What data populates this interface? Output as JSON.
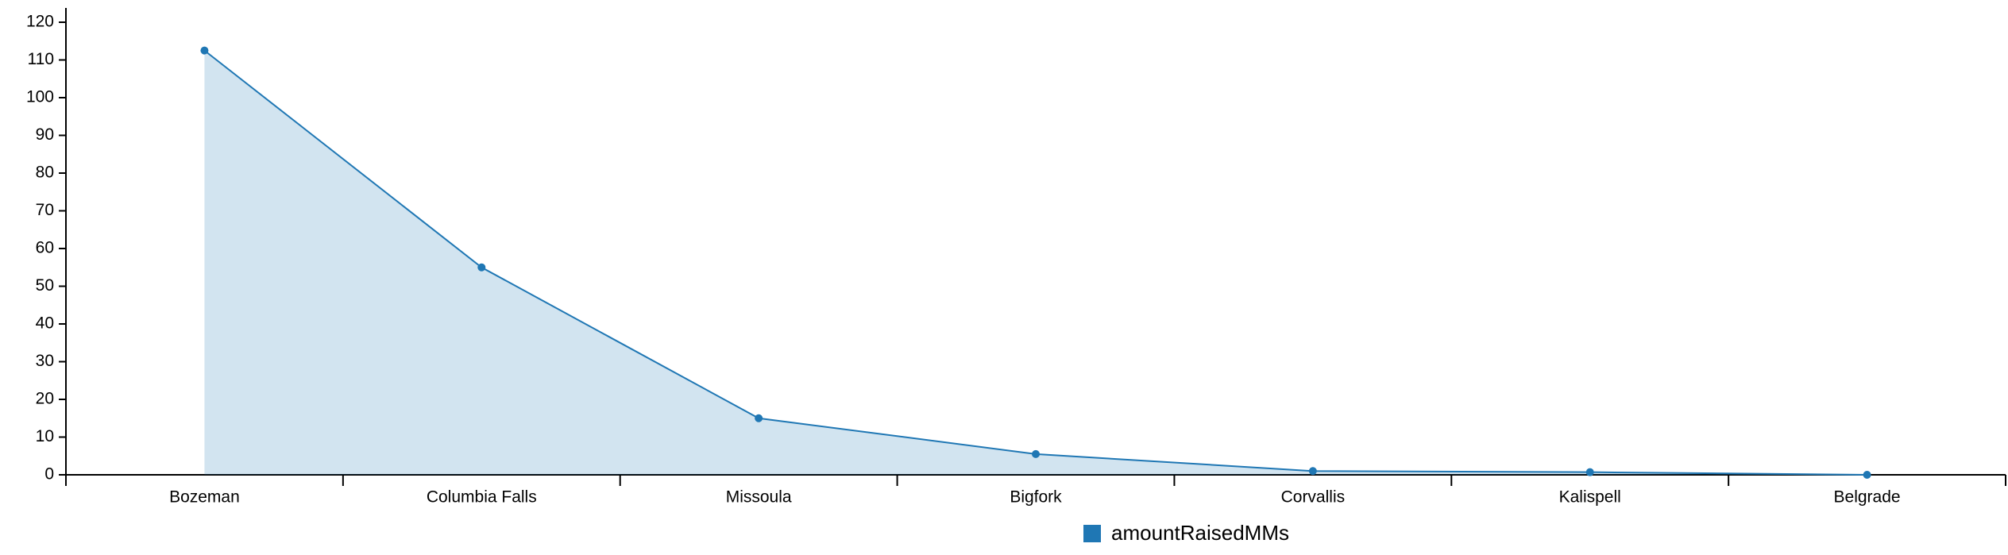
{
  "chart_data": {
    "type": "area",
    "categories": [
      "Bozeman",
      "Columbia Falls",
      "Missoula",
      "Bigfork",
      "Corvallis",
      "Kalispell",
      "Belgrade"
    ],
    "series": [
      {
        "name": "amountRaisedMMs",
        "color": "#1f77b4",
        "values": [
          112.5,
          55,
          15,
          5.5,
          1,
          0.7,
          0
        ]
      }
    ],
    "ylim": [
      0,
      120
    ],
    "yticks": [
      0,
      10,
      20,
      30,
      40,
      50,
      60,
      70,
      80,
      90,
      100,
      110,
      120
    ],
    "legend": "bottom"
  }
}
